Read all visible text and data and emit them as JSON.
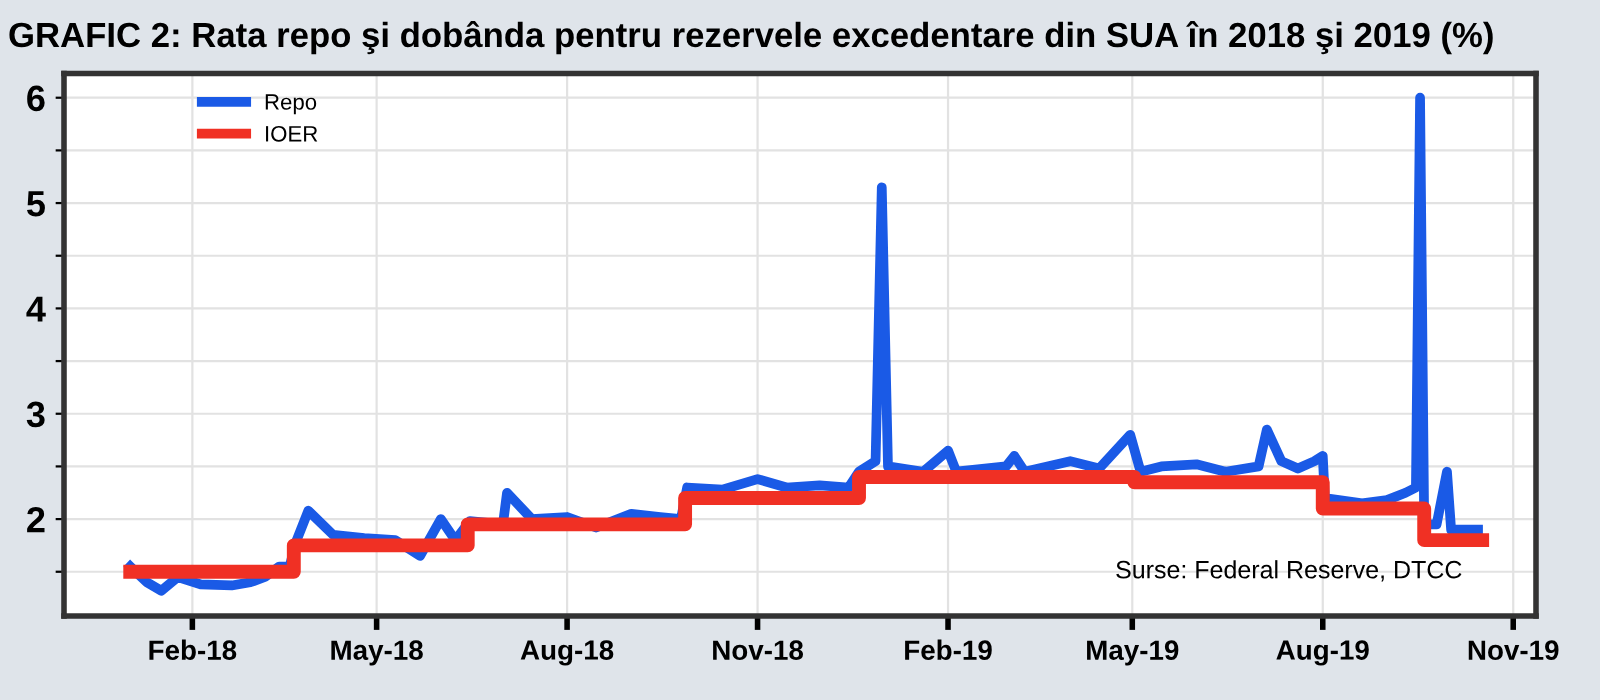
{
  "chart_data": {
    "type": "line",
    "title": "GRAFIC 2: Rata repo şi dobânda pentru rezervele excedentare din SUA în 2018 şi 2019 (%)",
    "series": [
      {
        "name": "Repo",
        "color": "#1a5ae6",
        "x": [
          "2018-01-02",
          "2018-01-10",
          "2018-01-17",
          "2018-01-25",
          "2018-02-05",
          "2018-02-20",
          "2018-03-01",
          "2018-03-08",
          "2018-03-15",
          "2018-03-20",
          "2018-03-23",
          "2018-03-29",
          "2018-04-10",
          "2018-04-25",
          "2018-05-10",
          "2018-05-22",
          "2018-06-01",
          "2018-06-08",
          "2018-06-15",
          "2018-07-01",
          "2018-07-03",
          "2018-07-15",
          "2018-08-01",
          "2018-08-15",
          "2018-09-01",
          "2018-09-15",
          "2018-09-25",
          "2018-09-28",
          "2018-10-15",
          "2018-11-01",
          "2018-11-15",
          "2018-12-01",
          "2018-12-15",
          "2018-12-20",
          "2018-12-28",
          "2018-12-31",
          "2019-01-03",
          "2019-01-20",
          "2019-02-01",
          "2019-02-05",
          "2019-03-01",
          "2019-03-05",
          "2019-03-10",
          "2019-04-01",
          "2019-04-15",
          "2019-04-30",
          "2019-05-05",
          "2019-05-15",
          "2019-06-01",
          "2019-06-15",
          "2019-07-01",
          "2019-07-05",
          "2019-07-12",
          "2019-07-20",
          "2019-07-28",
          "2019-08-01",
          "2019-08-02",
          "2019-08-20",
          "2019-09-01",
          "2019-09-10",
          "2019-09-15",
          "2019-09-17",
          "2019-09-19",
          "2019-09-25",
          "2019-09-30",
          "2019-10-02",
          "2019-10-15"
        ],
        "values": [
          1.55,
          1.4,
          1.32,
          1.45,
          1.38,
          1.37,
          1.4,
          1.45,
          1.55,
          1.55,
          1.78,
          2.08,
          1.85,
          1.82,
          1.8,
          1.65,
          2.0,
          1.8,
          1.98,
          1.95,
          2.25,
          2.0,
          2.02,
          1.92,
          2.05,
          2.02,
          2.0,
          2.3,
          2.28,
          2.38,
          2.3,
          2.32,
          2.3,
          2.45,
          2.55,
          5.15,
          2.5,
          2.45,
          2.65,
          2.45,
          2.5,
          2.6,
          2.45,
          2.55,
          2.48,
          2.8,
          2.45,
          2.5,
          2.52,
          2.45,
          2.5,
          2.85,
          2.55,
          2.48,
          2.55,
          2.6,
          2.2,
          2.15,
          2.18,
          2.25,
          2.3,
          6.0,
          1.95,
          1.95,
          2.45,
          1.9,
          1.9
        ]
      },
      {
        "name": "IOER",
        "color": "#f03024",
        "type": "step",
        "x": [
          "2018-01-02",
          "2018-03-22",
          "2018-06-14",
          "2018-09-27",
          "2018-12-20",
          "2019-05-02",
          "2019-08-01",
          "2019-09-19",
          "2019-10-17"
        ],
        "values": [
          1.5,
          1.75,
          1.95,
          2.2,
          2.4,
          2.35,
          2.1,
          1.8,
          1.8
        ]
      }
    ],
    "xlim": [
      "2017-12-01",
      "2019-11-12"
    ],
    "xticks": [
      {
        "value": "2018-02-01",
        "label": "Feb-18"
      },
      {
        "value": "2018-05-01",
        "label": "May-18"
      },
      {
        "value": "2018-08-01",
        "label": "Aug-18"
      },
      {
        "value": "2018-11-01",
        "label": "Nov-18"
      },
      {
        "value": "2019-02-01",
        "label": "Feb-19"
      },
      {
        "value": "2019-05-01",
        "label": "May-19"
      },
      {
        "value": "2019-08-01",
        "label": "Aug-19"
      },
      {
        "value": "2019-11-01",
        "label": "Nov-19"
      }
    ],
    "ylim": [
      1.08,
      6.23
    ],
    "yticks": [
      {
        "value": 1.5,
        "label": null
      },
      2,
      {
        "value": 2.5,
        "label": null
      },
      3,
      {
        "value": 3.5,
        "label": null
      },
      4,
      {
        "value": 4.5,
        "label": null
      },
      5,
      {
        "value": 5.5,
        "label": null
      },
      6
    ],
    "grid": true,
    "legend": "top left",
    "line_style": "solid",
    "annotations": [
      "Surse: Federal Reserve, DTCC"
    ]
  }
}
